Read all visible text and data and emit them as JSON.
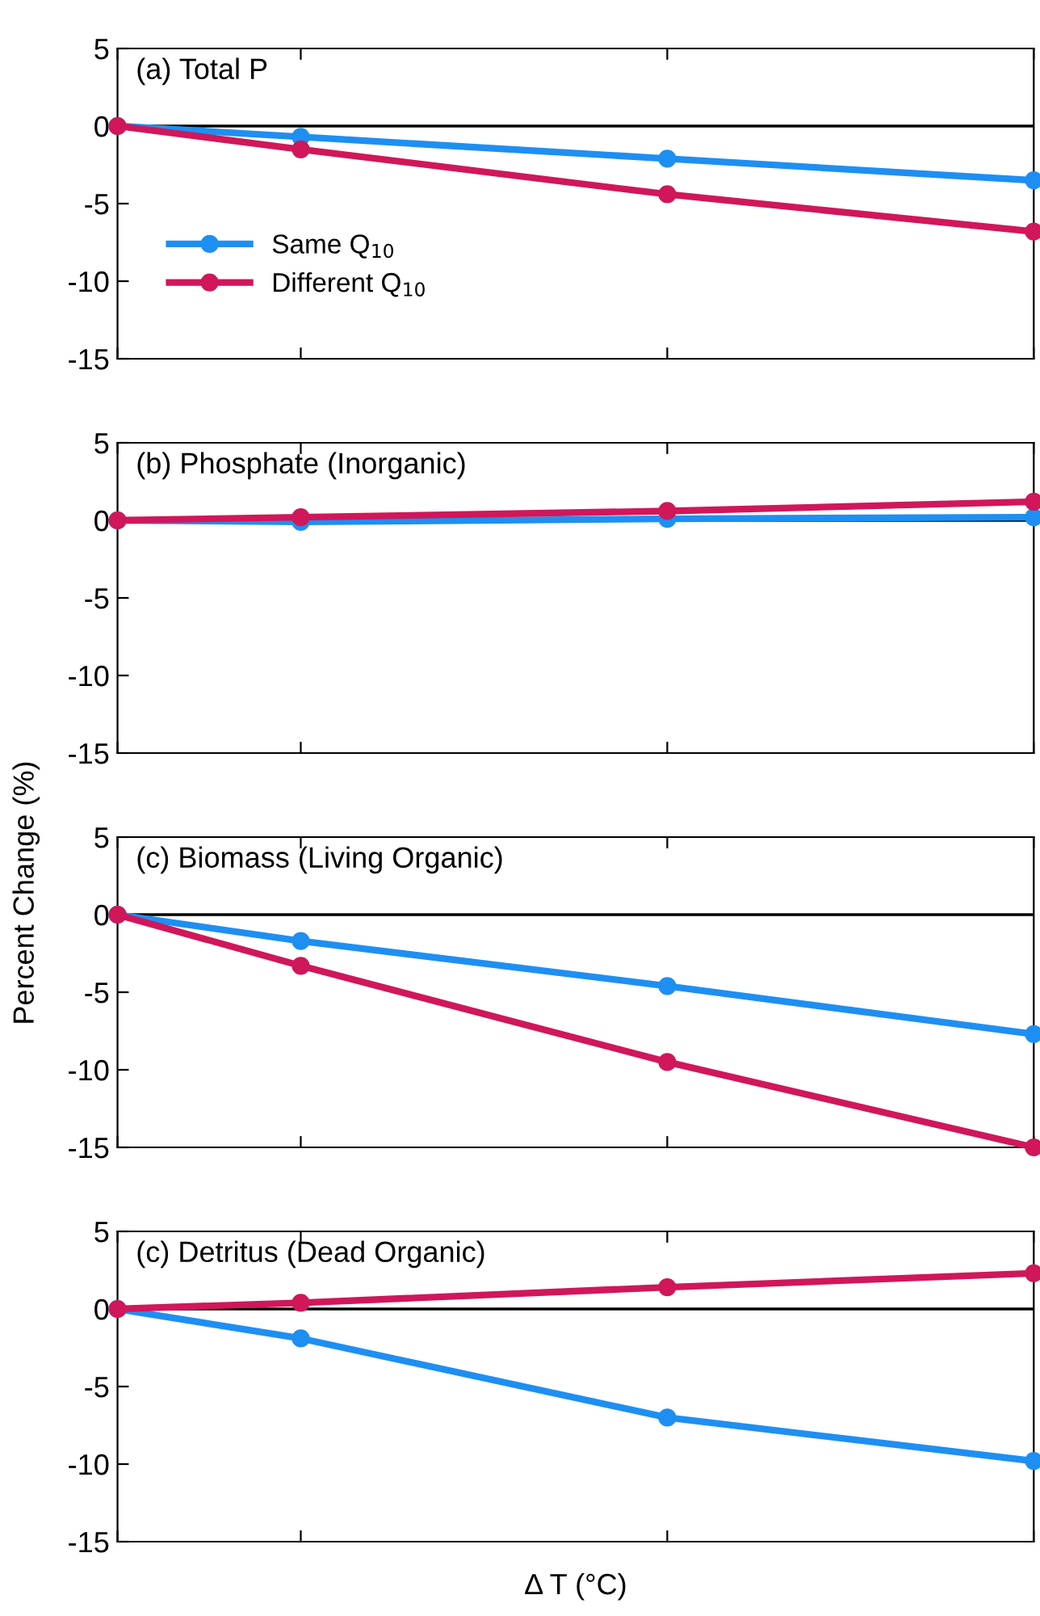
{
  "chart_data": [
    {
      "type": "line",
      "title": "(a) Total P",
      "categories": [
        null,
        null,
        null,
        null,
        null,
        null
      ],
      "ylim": [
        -15,
        5
      ],
      "yticks": [
        -15,
        -10,
        -5,
        0,
        5
      ],
      "marker": "circle",
      "line_style": "solid",
      "grid": false,
      "legend": "left",
      "tick_labels": "y",
      "ref_lines": [
        {
          "axis": "y",
          "value": 0,
          "color": "#000000"
        }
      ],
      "series": [
        {
          "name": "Same Q$_{10}$",
          "color": "#1e8ff2",
          "values": [
            0,
            -0.7,
            null,
            -2.1,
            null,
            -3.5
          ]
        },
        {
          "name": "Different Q$_{10}$",
          "color": "#d0175a",
          "values": [
            0,
            -1.5,
            null,
            -4.4,
            null,
            -6.8
          ]
        }
      ]
    },
    {
      "type": "line",
      "title": "(b) Phosphate (Inorganic)",
      "categories": [
        null,
        null,
        null,
        null,
        null,
        null
      ],
      "ylim": [
        -15,
        5
      ],
      "yticks": [
        -15,
        -10,
        -5,
        0,
        5
      ],
      "marker": "circle",
      "line_style": "solid",
      "grid": false,
      "tick_labels": "y",
      "ref_lines": [
        {
          "axis": "y",
          "value": 0,
          "color": "#000000"
        }
      ],
      "series": [
        {
          "color": "#1e8ff2",
          "values": [
            0,
            -0.1,
            null,
            0.1,
            null,
            0.2
          ]
        },
        {
          "color": "#d0175a",
          "values": [
            0,
            0.2,
            null,
            0.6,
            null,
            1.2
          ]
        }
      ]
    },
    {
      "type": "line",
      "title": "(c) Biomass (Living Organic)",
      "ylabel": "Percent Change (%)",
      "categories": [
        null,
        null,
        null,
        null,
        null,
        null
      ],
      "ylim": [
        -15,
        5
      ],
      "yticks": [
        -15,
        -10,
        -5,
        0,
        5
      ],
      "marker": "circle",
      "line_style": "solid",
      "grid": false,
      "tick_labels": "y",
      "ref_lines": [
        {
          "axis": "y",
          "value": 0,
          "color": "#000000"
        }
      ],
      "series": [
        {
          "color": "#1e8ff2",
          "values": [
            0,
            -1.7,
            null,
            -4.6,
            null,
            -7.7
          ]
        },
        {
          "color": "#d0175a",
          "values": [
            0,
            -3.3,
            null,
            -9.5,
            null,
            -15
          ]
        }
      ]
    },
    {
      "type": "line",
      "title": "(c) Detritus (Dead Organic)",
      "xlabel": "Δ T (°C)",
      "categories": [
        null,
        null,
        null,
        null,
        null,
        null
      ],
      "ylim": [
        -15,
        5
      ],
      "yticks": [
        -15,
        -10,
        -5,
        0,
        5
      ],
      "marker": "circle",
      "line_style": "solid",
      "grid": false,
      "tick_labels": "y",
      "ref_lines": [
        {
          "axis": "y",
          "value": 0,
          "color": "#000000"
        }
      ],
      "series": [
        {
          "color": "#1e8ff2",
          "values": [
            0,
            -1.9,
            null,
            -7.0,
            null,
            -9.8
          ]
        },
        {
          "color": "#d0175a",
          "values": [
            0,
            0.4,
            null,
            1.4,
            null,
            2.3
          ]
        }
      ]
    }
  ]
}
